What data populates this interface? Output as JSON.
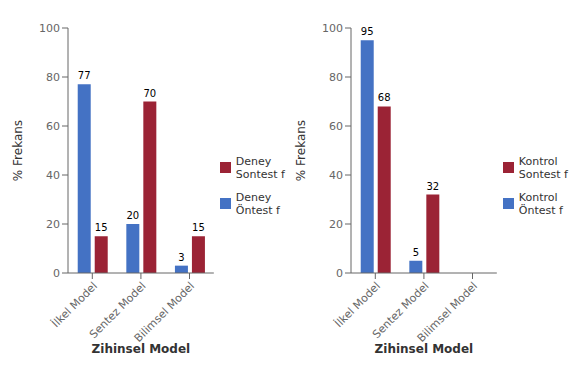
{
  "chart_data": [
    {
      "type": "bar",
      "categories": [
        "İlkel Model",
        "Sentez Model",
        "Bilimsel Model"
      ],
      "series": [
        {
          "name": "Deney\nÖntest f",
          "color": "#4472C4",
          "values": [
            77,
            20,
            3
          ]
        },
        {
          "name": "Deney\nSontest f",
          "color": "#9B2335",
          "values": [
            15,
            70,
            15
          ]
        }
      ],
      "xlabel": "Zihinsel Model",
      "ylabel": "% Frekans",
      "ylim": [
        0,
        100
      ],
      "yticks": [
        0,
        20,
        40,
        60,
        80,
        100
      ],
      "grid": false,
      "legend": "right",
      "data_labels": true
    },
    {
      "type": "bar",
      "categories": [
        "İlkel Model",
        "Sentez Model",
        "Bilimsel Model"
      ],
      "series": [
        {
          "name": "Kontrol\nÖntest f",
          "color": "#4472C4",
          "values": [
            95,
            5,
            0
          ]
        },
        {
          "name": "Kontrol\nSontest f",
          "color": "#9B2335",
          "values": [
            68,
            32,
            0
          ]
        }
      ],
      "xlabel": "Zihinsel Model",
      "ylabel": "% Frekans",
      "ylim": [
        0,
        100
      ],
      "yticks": [
        0,
        20,
        40,
        60,
        80,
        100
      ],
      "grid": false,
      "legend": "right",
      "data_labels": true
    }
  ]
}
